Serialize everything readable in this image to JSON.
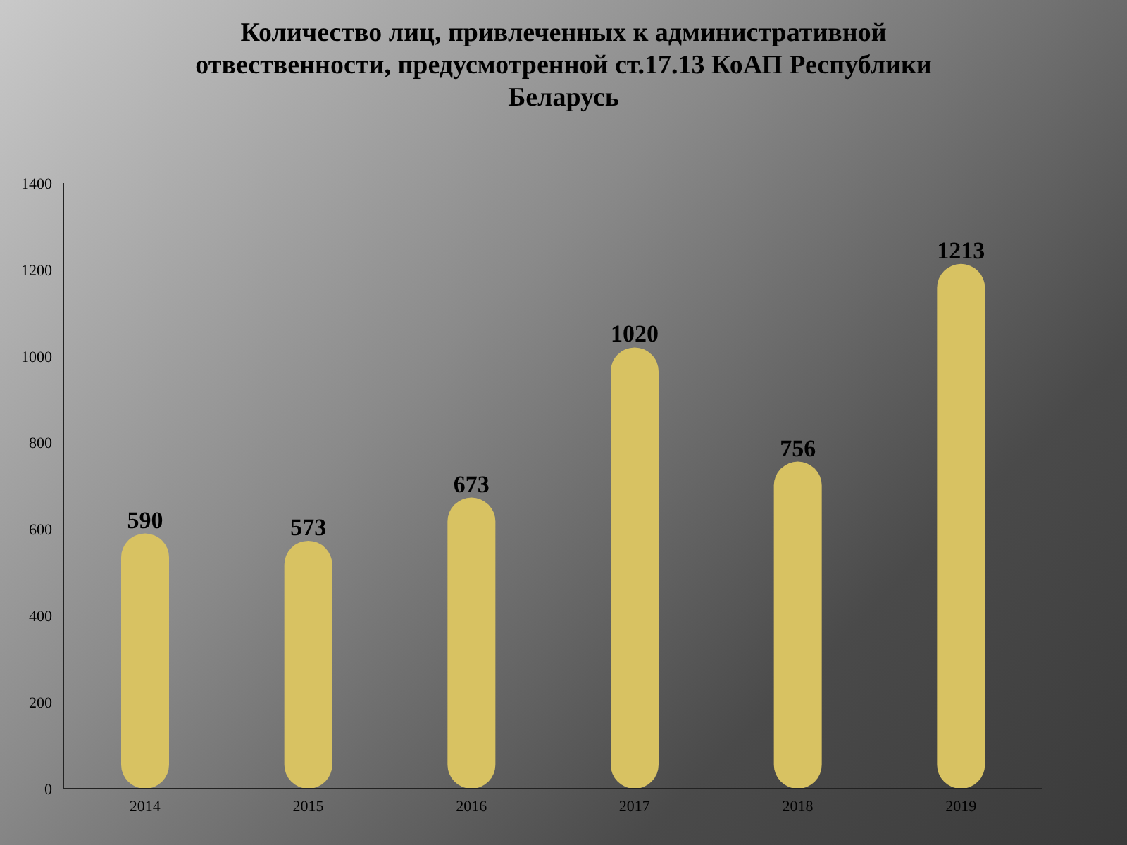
{
  "chart_data": {
    "type": "bar",
    "title": "Количество лиц, привлеченных к административной отвественности, предусмотренной ст.17.13 КоАП Республики Беларусь",
    "categories": [
      "2014",
      "2015",
      "2016",
      "2017",
      "2018",
      "2019"
    ],
    "values": [
      590,
      573,
      673,
      1020,
      756,
      1213
    ],
    "color": "#d8c262",
    "ylim": [
      0,
      1400
    ],
    "yticks": [
      0,
      200,
      400,
      600,
      800,
      1000,
      1200,
      1400
    ],
    "data_labels": true,
    "grid": false,
    "legend": false
  }
}
